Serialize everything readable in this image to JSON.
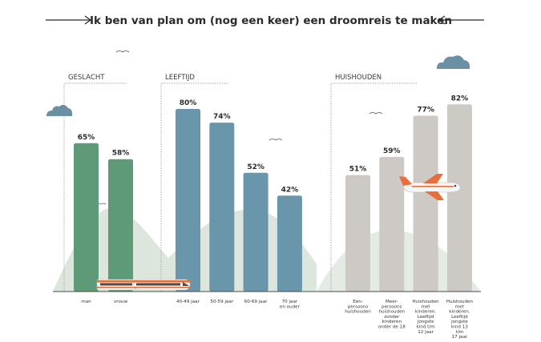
{
  "title": "Ik ben van plan om (nog een keer) een droomreis te maken",
  "colors": {
    "geslacht": "#5e9978",
    "leeftijd": "#6996aa",
    "huishouden": "#cdc9c4",
    "hills": "#dde6dd",
    "cloud": "#6b8fa3",
    "arrow": "#2b2b2b"
  },
  "chart_data": {
    "type": "bar",
    "title": "Ik ben van plan om (nog een keer) een droomreis te maken",
    "ylim": [
      0,
      100
    ],
    "unit": "%",
    "grid": false,
    "groups": [
      {
        "name": "GESLACHT",
        "color": "#5e9978",
        "categories": [
          [
            "man"
          ],
          [
            "vrouw"
          ]
        ],
        "values": [
          65,
          58
        ],
        "labels": [
          "65%",
          "58%"
        ]
      },
      {
        "name": "LEEFTIJD",
        "color": "#6996aa",
        "categories": [
          [
            "40-49 jaar"
          ],
          [
            "50-59 jaar"
          ],
          [
            "60-69 jaar"
          ],
          [
            "70 jaar",
            "en ouder"
          ]
        ],
        "values": [
          80,
          74,
          52,
          42
        ],
        "labels": [
          "80%",
          "74%",
          "52%",
          "42%"
        ]
      },
      {
        "name": "HUISHOUDEN",
        "color": "#cdc9c4",
        "categories": [
          [
            "Eén-",
            "persoons",
            "huishouden"
          ],
          [
            "Meer-",
            "persoons",
            "huishouden",
            "zonder",
            "kinderen",
            "onder de 18"
          ],
          [
            "Huishouden",
            "met",
            "kinderen.",
            "Leeftijd",
            "jongste",
            "kind t/m",
            "12 jaar"
          ],
          [
            "Huishouden",
            "met",
            "kinderen.",
            "Leeftijd",
            "jongste",
            "kind 13",
            "t/m",
            "17 jaar"
          ]
        ],
        "values": [
          51,
          59,
          77,
          82
        ],
        "labels": [
          "51%",
          "59%",
          "77%",
          "82%"
        ]
      }
    ]
  }
}
